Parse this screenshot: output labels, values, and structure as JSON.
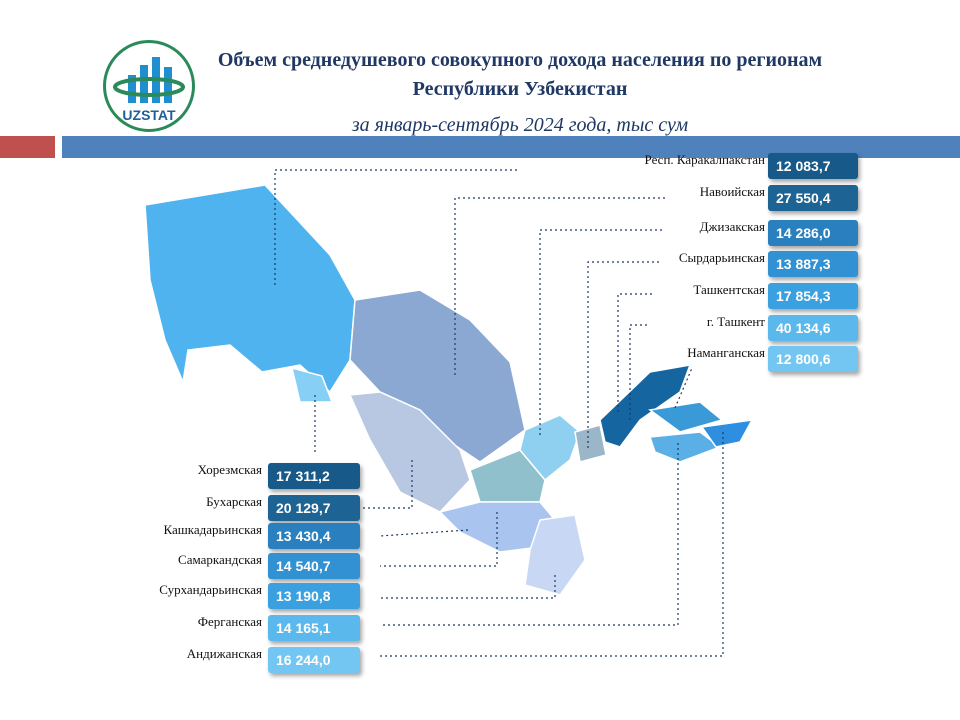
{
  "header": {
    "logo": "UZSTAT",
    "title": "Объем среднедушевого совокупного дохода населения по регионам Республики Узбекистан",
    "subtitle": "за январь-сентябрь 2024 года, тыс сум"
  },
  "regions": [
    {
      "name": "Респ. Каракалпакстан",
      "value": "12 083,7"
    },
    {
      "name": "Навоийская",
      "value": "27 550,4"
    },
    {
      "name": "Джизакская",
      "value": "14 286,0"
    },
    {
      "name": "Сырдарьинская",
      "value": "13 887,3"
    },
    {
      "name": "Ташкентская",
      "value": "17 854,3"
    },
    {
      "name": "г. Ташкент",
      "value": "40 134,6"
    },
    {
      "name": "Наманганская",
      "value": "12 800,6"
    },
    {
      "name": "Хорезмская",
      "value": "17 311,2"
    },
    {
      "name": "Бухарская",
      "value": "20 129,7"
    },
    {
      "name": "Кашкадарьинская",
      "value": "13 430,4"
    },
    {
      "name": "Самаркандская",
      "value": "14 540,7"
    },
    {
      "name": "Сурхандарьинская",
      "value": "13 190,8"
    },
    {
      "name": "Ферганская",
      "value": "14 165,1"
    },
    {
      "name": "Андижанская",
      "value": "16 244,0"
    }
  ]
}
